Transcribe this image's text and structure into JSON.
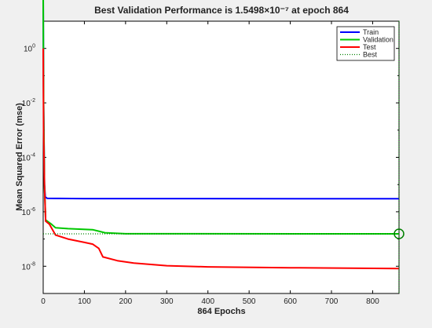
{
  "chart_data": {
    "type": "line",
    "title": "Best Validation Performance is 1.5498×10⁻⁷ at epoch 864",
    "xlabel": "864 Epochs",
    "ylabel": "Mean Squared Error  (mse)",
    "xlim": [
      0,
      864
    ],
    "ylim_log10": [
      -9,
      1
    ],
    "yscale": "log",
    "grid": false,
    "legend_position": "top-right",
    "x_ticks": [
      0,
      100,
      200,
      300,
      400,
      500,
      600,
      700,
      800
    ],
    "y_ticks": [
      {
        "exp": 0,
        "label": "10",
        "sup": "0"
      },
      {
        "exp": -2,
        "label": "10",
        "sup": "-2"
      },
      {
        "exp": -4,
        "label": "10",
        "sup": "-4"
      },
      {
        "exp": -6,
        "label": "10",
        "sup": "-6"
      },
      {
        "exp": -8,
        "label": "10",
        "sup": "-8"
      }
    ],
    "series": [
      {
        "name": "Train",
        "color": "#0000ff",
        "points": [
          [
            0,
            100
          ],
          [
            1,
            0.01
          ],
          [
            3,
            1e-05
          ],
          [
            5,
            3.5e-06
          ],
          [
            10,
            3.1e-06
          ],
          [
            100,
            3.05e-06
          ],
          [
            864,
            3e-06
          ]
        ]
      },
      {
        "name": "Validation",
        "color": "#00c800",
        "points": [
          [
            0,
            100
          ],
          [
            1,
            0.01
          ],
          [
            3,
            1e-05
          ],
          [
            6,
            5e-07
          ],
          [
            20,
            3.5e-07
          ],
          [
            30,
            2.6e-07
          ],
          [
            60,
            2.4e-07
          ],
          [
            120,
            2.2e-07
          ],
          [
            150,
            1.7e-07
          ],
          [
            200,
            1.56e-07
          ],
          [
            864,
            1.5498e-07
          ]
        ]
      },
      {
        "name": "Test",
        "color": "#ff0000",
        "points": [
          [
            0,
            1
          ],
          [
            1,
            0.001
          ],
          [
            3,
            1e-05
          ],
          [
            6,
            4.5e-07
          ],
          [
            15,
            3.5e-07
          ],
          [
            30,
            1.4e-07
          ],
          [
            60,
            1e-07
          ],
          [
            100,
            7.5e-08
          ],
          [
            120,
            6.5e-08
          ],
          [
            135,
            4.5e-08
          ],
          [
            145,
            2.2e-08
          ],
          [
            180,
            1.6e-08
          ],
          [
            220,
            1.3e-08
          ],
          [
            300,
            1.05e-08
          ],
          [
            400,
            9.5e-09
          ],
          [
            600,
            8.8e-09
          ],
          [
            864,
            8.2e-09
          ]
        ]
      }
    ],
    "best": {
      "name": "Best",
      "epoch": 864,
      "value": 1.5498e-07,
      "color": "#008000"
    }
  }
}
